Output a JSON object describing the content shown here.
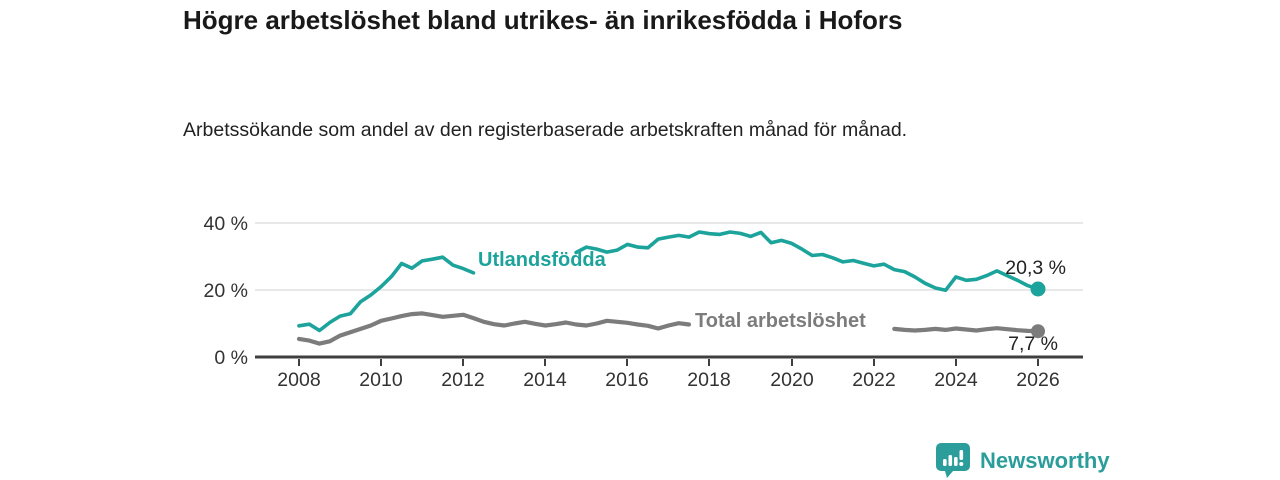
{
  "page": {
    "title": "Högre arbetslöshet bland utrikes- än inrikesfödda i Hofors",
    "subtitle": "Arbetssökande som andel av den registerbaserade arbetskraften månad för månad."
  },
  "chart_data": {
    "type": "line",
    "title": "Högre arbetslöshet bland utrikes- än inrikesfödda i Hofors",
    "subtitle": "Arbetssökande som andel av den registerbaserade arbetskraften månad för månad.",
    "unit": "%",
    "x_start": 2008,
    "x_step": 0.25,
    "xlim": [
      2008,
      2026
    ],
    "ylim": [
      0,
      42
    ],
    "grid": "horizontal",
    "x_ticks": [
      2008,
      2010,
      2012,
      2014,
      2016,
      2018,
      2020,
      2022,
      2024,
      2026
    ],
    "x_tick_labels": [
      "2008",
      "2010",
      "2012",
      "2014",
      "2016",
      "2018",
      "2020",
      "2022",
      "2024",
      "2026"
    ],
    "y_ticks": [
      40,
      20,
      0
    ],
    "y_tick_labels": [
      "40 %",
      "20 %",
      "0 %"
    ],
    "series": [
      {
        "name": "Utlandsfödda",
        "color": "#1CA39B",
        "end_value": 20.3,
        "end_label": "20,3 %",
        "values": [
          9.3,
          9.8,
          7.9,
          10.3,
          12.2,
          12.9,
          16.5,
          18.5,
          21.0,
          24.0,
          27.9,
          26.5,
          28.7,
          29.2,
          29.8,
          27.4,
          26.4,
          25.1,
          null,
          null,
          null,
          null,
          null,
          null,
          null,
          null,
          null,
          31.2,
          32.8,
          32.2,
          31.3,
          31.9,
          33.6,
          32.8,
          32.6,
          35.2,
          35.8,
          36.3,
          35.8,
          37.3,
          36.8,
          36.6,
          37.3,
          36.9,
          36.0,
          37.2,
          34.1,
          34.8,
          33.9,
          32.2,
          30.3,
          30.6,
          29.6,
          28.4,
          28.8,
          28.0,
          27.2,
          27.7,
          26.1,
          25.5,
          23.9,
          22.0,
          20.6,
          19.9,
          23.9,
          22.9,
          23.2,
          24.3,
          25.7,
          24.3,
          22.9,
          21.3,
          20.3
        ]
      },
      {
        "name": "Total arbetslöshet",
        "color": "#7C7C7C",
        "end_value": 7.7,
        "end_label": "7,7 %",
        "values": [
          5.4,
          4.9,
          4.0,
          4.7,
          6.4,
          7.4,
          8.4,
          9.4,
          10.8,
          11.5,
          12.2,
          12.8,
          13.0,
          12.5,
          12.0,
          12.3,
          12.6,
          11.6,
          10.5,
          9.8,
          9.4,
          10.0,
          10.5,
          9.9,
          9.4,
          9.8,
          10.3,
          9.7,
          9.4,
          10.0,
          10.8,
          10.5,
          10.2,
          9.7,
          9.3,
          8.5,
          9.4,
          10.1,
          9.7,
          null,
          null,
          null,
          null,
          null,
          null,
          null,
          null,
          null,
          null,
          null,
          null,
          null,
          null,
          null,
          null,
          null,
          null,
          null,
          8.4,
          8.1,
          7.9,
          8.1,
          8.4,
          8.1,
          8.5,
          8.2,
          7.9,
          8.3,
          8.6,
          8.3,
          8.0,
          7.8,
          7.7
        ]
      }
    ]
  },
  "footer": {
    "brand": "Newsworthy"
  }
}
